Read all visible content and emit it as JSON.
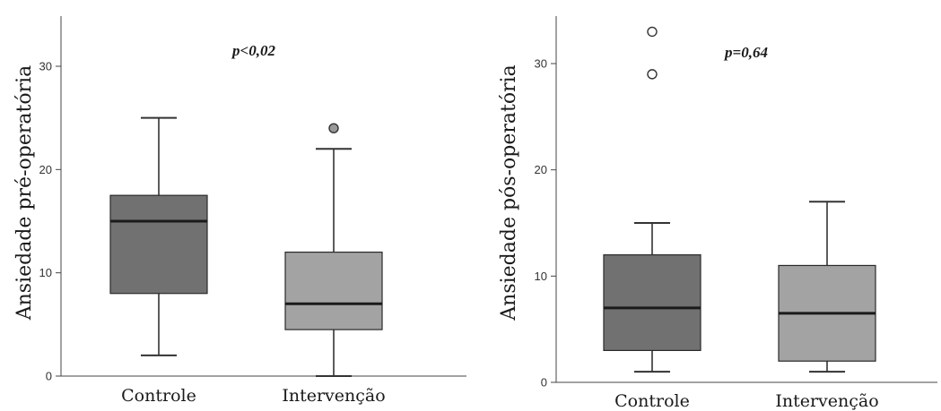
{
  "chart_data": [
    {
      "type": "box",
      "ylabel": "Ansiedade pré-operatória",
      "annotation": "p<0,02",
      "ylim": [
        0,
        35
      ],
      "yticks": [
        0,
        10,
        20,
        30
      ],
      "categories": [
        "Controle",
        "Intervenção"
      ],
      "boxes": [
        {
          "category": "Controle",
          "min": 2,
          "q1": 8,
          "median": 15,
          "q3": 17.5,
          "max": 25,
          "outliers": [],
          "color": "#717171"
        },
        {
          "category": "Intervenção",
          "min": 0,
          "q1": 4.5,
          "median": 7,
          "q3": 12,
          "max": 22,
          "outliers": [
            24
          ],
          "outlier_style": "filled",
          "color": "#a3a3a3"
        }
      ]
    },
    {
      "type": "box",
      "ylabel": "Ansiedade pós-operatória",
      "annotation": "p=0,64",
      "ylim": [
        0,
        35
      ],
      "yticks": [
        0,
        10,
        20,
        30
      ],
      "categories": [
        "Controle",
        "Intervenção"
      ],
      "boxes": [
        {
          "category": "Controle",
          "min": 1,
          "q1": 3,
          "median": 7,
          "q3": 12,
          "max": 15,
          "outliers": [
            29,
            33
          ],
          "outlier_style": "open",
          "color": "#717171"
        },
        {
          "category": "Intervenção",
          "min": 1,
          "q1": 2,
          "median": 6.5,
          "q3": 11,
          "max": 17,
          "outliers": [],
          "color": "#a3a3a3"
        }
      ]
    }
  ]
}
